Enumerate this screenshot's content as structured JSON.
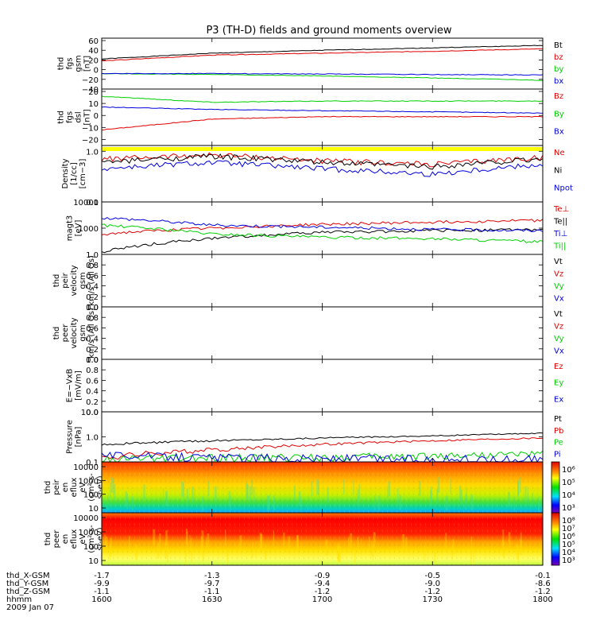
{
  "title": "P3 (TH-D) fields and ground moments overview",
  "colors": {
    "black": "#000000",
    "red": "#e00000",
    "green": "#00d000",
    "blue": "#0000e0",
    "yellow": "#ffff00"
  },
  "footer": {
    "row_labels": [
      "thd_X-GSM",
      "thd_Y-GSM",
      "thd_Z-GSM",
      "hhmm",
      "2009 Jan 07"
    ],
    "columns": [
      {
        "x": "-1.7",
        "y": "-9.9",
        "z": "-1.1",
        "t": "1600"
      },
      {
        "x": "-1.3",
        "y": "-9.7",
        "z": "-1.1",
        "t": "1630"
      },
      {
        "x": "-0.9",
        "y": "-9.4",
        "z": "-1.2",
        "t": "1700"
      },
      {
        "x": "-0.5",
        "y": "-9.0",
        "z": "-1.2",
        "t": "1730"
      },
      {
        "x": "-0.1",
        "y": "-8.6",
        "z": "-1.2",
        "t": "1800"
      }
    ]
  },
  "chart_data": [
    {
      "type": "line",
      "id": "fgs_gsm",
      "ylabel_lines": [
        "thd",
        "fgs",
        "gsm",
        "[nT]"
      ],
      "ylim": [
        -40,
        65
      ],
      "yticks": [
        "60",
        "40",
        "20",
        "0",
        "−20",
        "−40"
      ],
      "ytick_values": [
        60,
        40,
        20,
        0,
        -20,
        -40
      ],
      "legend": [
        {
          "name": "Bt",
          "color": "black"
        },
        {
          "name": "bz",
          "color": "red"
        },
        {
          "name": "by",
          "color": "green"
        },
        {
          "name": "bx",
          "color": "blue"
        }
      ],
      "x_hours": [
        16.0,
        16.5,
        17.0,
        17.5,
        18.0
      ],
      "series": [
        {
          "name": "Bt",
          "color": "black",
          "values": [
            22,
            34,
            40,
            45,
            50
          ]
        },
        {
          "name": "bz",
          "color": "red",
          "values": [
            18,
            30,
            34,
            38,
            43
          ]
        },
        {
          "name": "by",
          "color": "green",
          "values": [
            -8,
            -10,
            -13,
            -17,
            -22
          ]
        },
        {
          "name": "bx",
          "color": "blue",
          "values": [
            -8,
            -8,
            -9,
            -10,
            -11
          ]
        }
      ]
    },
    {
      "type": "line",
      "id": "fgs_dsl",
      "ylabel_lines": [
        "thd",
        "fgs",
        "dsl",
        "[nT]"
      ],
      "ylim": [
        -25,
        22
      ],
      "yticks": [
        "20",
        "10",
        "0",
        "−10",
        "−20"
      ],
      "ytick_values": [
        20,
        10,
        0,
        -10,
        -20
      ],
      "legend": [
        {
          "name": "Bz",
          "color": "red"
        },
        {
          "name": "By",
          "color": "green"
        },
        {
          "name": "Bx",
          "color": "blue"
        }
      ],
      "x_hours": [
        16.0,
        16.5,
        17.0,
        17.5,
        18.0
      ],
      "series": [
        {
          "name": "Bz",
          "color": "red",
          "values": [
            -12,
            -3,
            -1,
            -1,
            -1
          ]
        },
        {
          "name": "By",
          "color": "green",
          "values": [
            16,
            11,
            12,
            12,
            12
          ]
        },
        {
          "name": "Bx",
          "color": "blue",
          "values": [
            7,
            5,
            4,
            3,
            2
          ]
        }
      ]
    },
    {
      "type": "line",
      "id": "density",
      "yscale": "log",
      "ylabel_lines": [
        "Density",
        "[1/cc]",
        "[cm−3]"
      ],
      "ylim": [
        0.1,
        1.3
      ],
      "yticks": [
        "1.0",
        "0.1"
      ],
      "ytick_values": [
        1.0,
        0.1
      ],
      "legend": [
        {
          "name": "Ne",
          "color": "red"
        },
        {
          "name": "Ni",
          "color": "black"
        },
        {
          "name": "Npot",
          "color": "blue"
        }
      ],
      "x_hours": [
        16.0,
        16.5,
        17.0,
        17.5,
        18.0
      ],
      "series": [
        {
          "name": "Ne",
          "color": "red",
          "values": [
            0.7,
            0.85,
            0.65,
            0.55,
            0.75
          ]
        },
        {
          "name": "Ni",
          "color": "black",
          "values": [
            0.6,
            0.8,
            0.6,
            0.5,
            0.7
          ]
        },
        {
          "name": "Npot",
          "color": "blue",
          "values": [
            0.45,
            0.6,
            0.45,
            0.35,
            0.55
          ]
        }
      ]
    },
    {
      "type": "line",
      "id": "temperature",
      "yscale": "log",
      "ylabel_lines": [
        "magt3",
        "[eV]"
      ],
      "ylim": [
        100,
        10000
      ],
      "yticks": [
        "10000",
        "1000"
      ],
      "ytick_values": [
        10000,
        1000
      ],
      "legend": [
        {
          "name": "Te⊥",
          "color": "red"
        },
        {
          "name": "Te||",
          "color": "black"
        },
        {
          "name": "Ti⊥",
          "color": "blue"
        },
        {
          "name": "Ti||",
          "color": "green"
        }
      ],
      "x_hours": [
        16.0,
        16.5,
        17.0,
        17.5,
        18.0
      ],
      "series": [
        {
          "name": "Te⊥",
          "color": "red",
          "values": [
            600,
            1000,
            1400,
            1700,
            2000
          ]
        },
        {
          "name": "Te||",
          "color": "black",
          "values": [
            120,
            400,
            700,
            800,
            900
          ]
        },
        {
          "name": "Ti⊥",
          "color": "blue",
          "values": [
            2500,
            1300,
            1100,
            900,
            800
          ]
        },
        {
          "name": "Ti||",
          "color": "green",
          "values": [
            1300,
            600,
            450,
            400,
            300
          ]
        }
      ]
    },
    {
      "type": "line",
      "id": "peir_velocity",
      "ylabel_lines": [
        "thd",
        "peir",
        "velocity",
        "gsm",
        "km/s (All Qs)"
      ],
      "ylim": [
        0,
        1
      ],
      "yticks": [
        "1.0",
        "0.8",
        "0.6",
        "0.4",
        "0.2",
        "0.0"
      ],
      "legend": [
        {
          "name": "Vt",
          "color": "black"
        },
        {
          "name": "Vz",
          "color": "red"
        },
        {
          "name": "Vy",
          "color": "green"
        },
        {
          "name": "Vx",
          "color": "blue"
        }
      ],
      "series": []
    },
    {
      "type": "line",
      "id": "peer_velocity",
      "ylabel_lines": [
        "thd",
        "peer",
        "velocity",
        "gsm",
        "km/s (All Qs)"
      ],
      "ylim": [
        0,
        1
      ],
      "yticks": [
        "1.0",
        "0.8",
        "0.6",
        "0.4",
        "0.2",
        "0.0"
      ],
      "legend": [
        {
          "name": "Vt",
          "color": "black"
        },
        {
          "name": "Vz",
          "color": "red"
        },
        {
          "name": "Vy",
          "color": "green"
        },
        {
          "name": "Vx",
          "color": "blue"
        }
      ],
      "series": []
    },
    {
      "type": "line",
      "id": "efield",
      "ylabel_lines": [
        "E=−VxB",
        "[mV/m]"
      ],
      "ylim": [
        0,
        1
      ],
      "yticks": [
        "1.0",
        "0.8",
        "0.6",
        "0.4",
        "0.2",
        "0.0"
      ],
      "legend": [
        {
          "name": "Ez",
          "color": "red"
        },
        {
          "name": "Ey",
          "color": "green"
        },
        {
          "name": "Ex",
          "color": "blue"
        }
      ],
      "series": []
    },
    {
      "type": "line",
      "id": "pressure",
      "yscale": "log",
      "ylabel_lines": [
        "Pressure",
        "[nPa]"
      ],
      "ylim": [
        0.1,
        10
      ],
      "yticks": [
        "10.0",
        "1.0",
        "0.1"
      ],
      "ytick_values": [
        10,
        1,
        0.1
      ],
      "legend": [
        {
          "name": "Pt",
          "color": "black"
        },
        {
          "name": "Pb",
          "color": "red"
        },
        {
          "name": "Pe",
          "color": "green"
        },
        {
          "name": "Pi",
          "color": "blue"
        }
      ],
      "x_hours": [
        16.0,
        16.5,
        17.0,
        17.5,
        18.0
      ],
      "series": [
        {
          "name": "Pt",
          "color": "black",
          "values": [
            0.5,
            0.7,
            0.9,
            1.1,
            1.4
          ]
        },
        {
          "name": "Pb",
          "color": "red",
          "values": [
            0.15,
            0.3,
            0.5,
            0.7,
            0.9
          ]
        },
        {
          "name": "Pe",
          "color": "green",
          "values": [
            0.12,
            0.14,
            0.16,
            0.18,
            0.22
          ]
        },
        {
          "name": "Pi",
          "color": "blue",
          "values": [
            0.2,
            0.15,
            0.14,
            0.13,
            0.12
          ]
        }
      ]
    },
    {
      "type": "heatmap",
      "id": "peir_en_eflux",
      "ylabel_lines": [
        "thd",
        "peir",
        "en",
        "eflux",
        "eV",
        "(cm²-s-",
        "sr-eV)"
      ],
      "yticks": [
        "10000",
        "1000",
        "100",
        "10"
      ],
      "colorbar_ticks": [
        "10⁶",
        "10⁵",
        "10⁴",
        "10³"
      ]
    },
    {
      "type": "heatmap",
      "id": "peer_en_eflux",
      "ylabel_lines": [
        "thd",
        "peer",
        "en",
        "eflux",
        "eV",
        "(cm²-s-",
        "sr-eV)"
      ],
      "yticks": [
        "10000",
        "1000",
        "100",
        "10"
      ],
      "colorbar_ticks": [
        "10⁸",
        "10⁷",
        "10⁶",
        "10⁵",
        "10⁴",
        "10³"
      ]
    }
  ]
}
